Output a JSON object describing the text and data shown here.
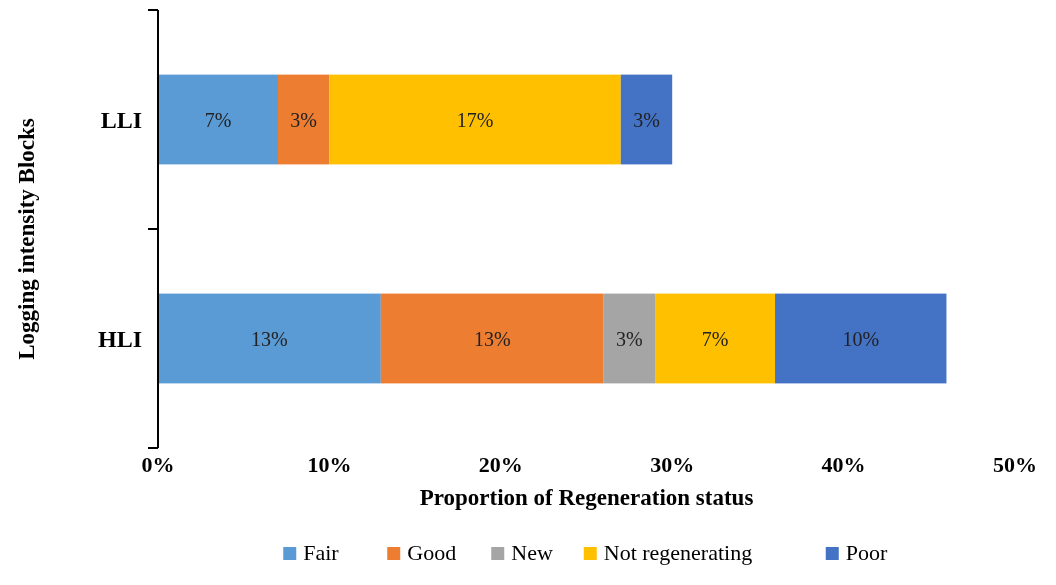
{
  "chart_data": {
    "type": "bar",
    "orientation": "horizontal",
    "stacked": true,
    "xlabel": "Proportion of Regeneration status",
    "ylabel": "Logging intensity Blocks",
    "categories": [
      "LLI",
      "HLI"
    ],
    "series": [
      {
        "name": "Fair",
        "color": "#5b9bd5",
        "values": [
          7,
          13
        ],
        "value_labels": [
          "7%",
          "13%"
        ]
      },
      {
        "name": "Good",
        "color": "#ed7d31",
        "values": [
          3,
          13
        ],
        "value_labels": [
          "3%",
          "13%"
        ]
      },
      {
        "name": "New",
        "color": "#a5a5a5",
        "values": [
          null,
          3
        ],
        "value_labels": [
          null,
          "3%"
        ]
      },
      {
        "name": "Not regenerating",
        "color": "#ffc000",
        "values": [
          17,
          7
        ],
        "value_labels": [
          "17%",
          "7%"
        ]
      },
      {
        "name": "Poor",
        "color": "#4472c4",
        "values": [
          3,
          10
        ],
        "value_labels": [
          "3%",
          "10%"
        ]
      }
    ],
    "xlim": [
      0,
      50
    ],
    "xticks": [
      {
        "value": 0,
        "label": "0%"
      },
      {
        "value": 10,
        "label": "10%"
      },
      {
        "value": 20,
        "label": "20%"
      },
      {
        "value": 30,
        "label": "30%"
      },
      {
        "value": 40,
        "label": "40%"
      },
      {
        "value": 50,
        "label": "50%"
      }
    ],
    "grid": false,
    "legend": "bottom"
  }
}
